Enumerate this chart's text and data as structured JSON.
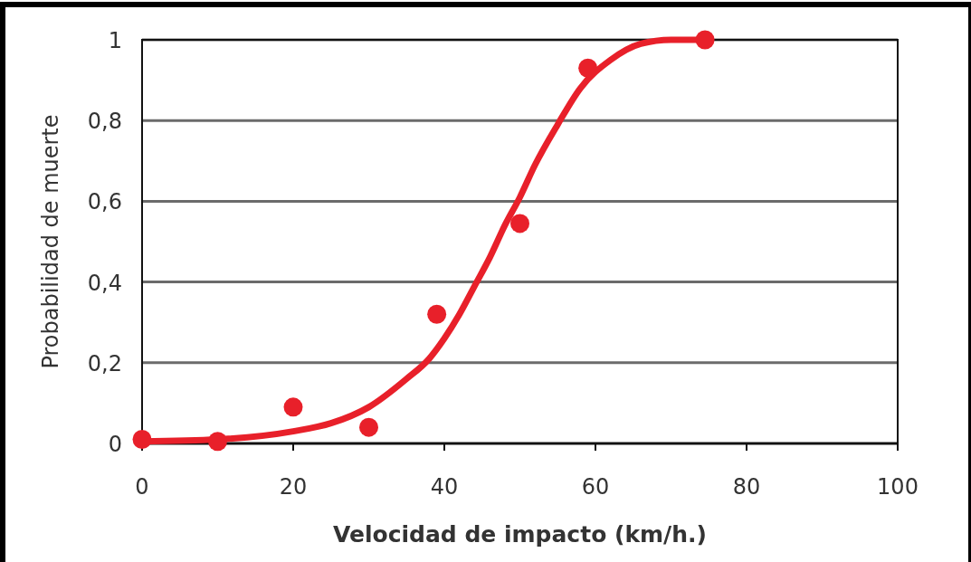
{
  "chart_data": {
    "type": "scatter",
    "xlabel": "Velocidad de impacto (km/h.)",
    "ylabel": "Probabilidad de muerte",
    "xlim": [
      0,
      100
    ],
    "xticks": [
      0,
      20,
      40,
      60,
      80,
      100
    ],
    "ylim": [
      0,
      1
    ],
    "yticks": [
      0,
      {
        "value": 0.2,
        "label": "0,2"
      },
      {
        "value": 0.4,
        "label": "0,4"
      },
      {
        "value": 0.6,
        "label": "0,6"
      },
      {
        "value": 0.8,
        "label": "0,8"
      },
      1
    ],
    "grid": "y",
    "series": [
      {
        "color": "#e8202a",
        "marker": "circle",
        "x": [
          0,
          10,
          20,
          30,
          39,
          50,
          59,
          74.5
        ],
        "values": [
          0.01,
          0.005,
          0.09,
          0.04,
          0.32,
          0.545,
          0.93,
          1.0
        ]
      },
      {
        "type": "line",
        "color": "#e8202a",
        "line_style": "solid",
        "x": [
          0,
          10,
          20,
          25,
          30,
          35,
          38,
          40,
          42,
          44,
          46,
          48,
          50,
          52,
          55,
          58,
          62,
          66,
          70,
          74
        ],
        "values": [
          0.005,
          0.01,
          0.03,
          0.05,
          0.09,
          0.16,
          0.21,
          0.26,
          0.32,
          0.39,
          0.46,
          0.54,
          0.61,
          0.69,
          0.79,
          0.88,
          0.95,
          0.99,
          1.0,
          1.0
        ]
      }
    ]
  }
}
